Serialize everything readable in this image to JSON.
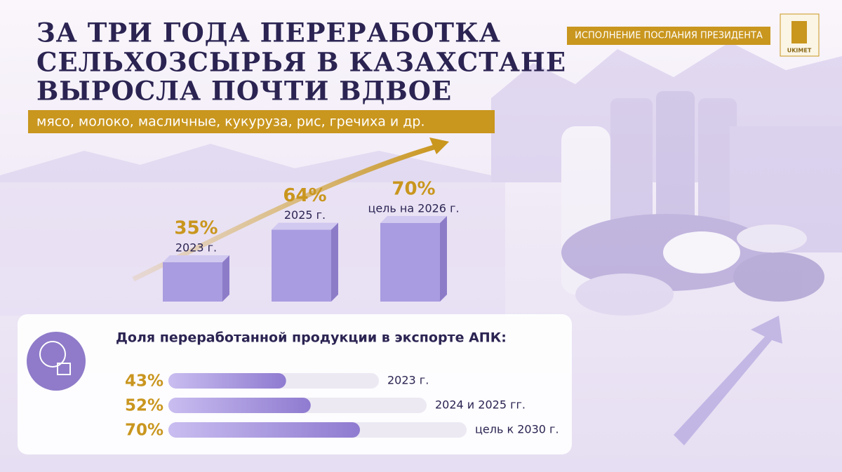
{
  "header": {
    "title_lines": [
      "ЗА ТРИ ГОДА ПЕРЕРАБОТКА",
      "СЕЛЬХОЗСЫРЬЯ В КАЗАХСТАНЕ",
      "ВЫРОСЛА ПОЧТИ ВДВОЕ"
    ],
    "subtitle": "мясо, молоко, масличные, кукуруза, рис, гречиха и др.",
    "badge": "ИСПОЛНЕНИЕ ПОСЛАНИЯ ПРЕЗИДЕНТА",
    "logo": "UKIMET"
  },
  "chart_data": [
    {
      "type": "bar",
      "orientation": "vertical",
      "categories": [
        "2023 г.",
        "2025 г.",
        "цель на 2026 г."
      ],
      "values": [
        35,
        64,
        70
      ],
      "value_labels": [
        "35%",
        "64%",
        "70%"
      ],
      "color": "#a99ce0"
    },
    {
      "type": "bar",
      "orientation": "horizontal",
      "title": "Доля переработанной продукции в экспорте АПК:",
      "categories": [
        "2023 г.",
        "2024 и 2025 гг.",
        "цель к 2030 г."
      ],
      "values": [
        43,
        52,
        70
      ],
      "value_labels": [
        "43%",
        "52%",
        "70%"
      ],
      "color": "#9a86d6"
    }
  ]
}
